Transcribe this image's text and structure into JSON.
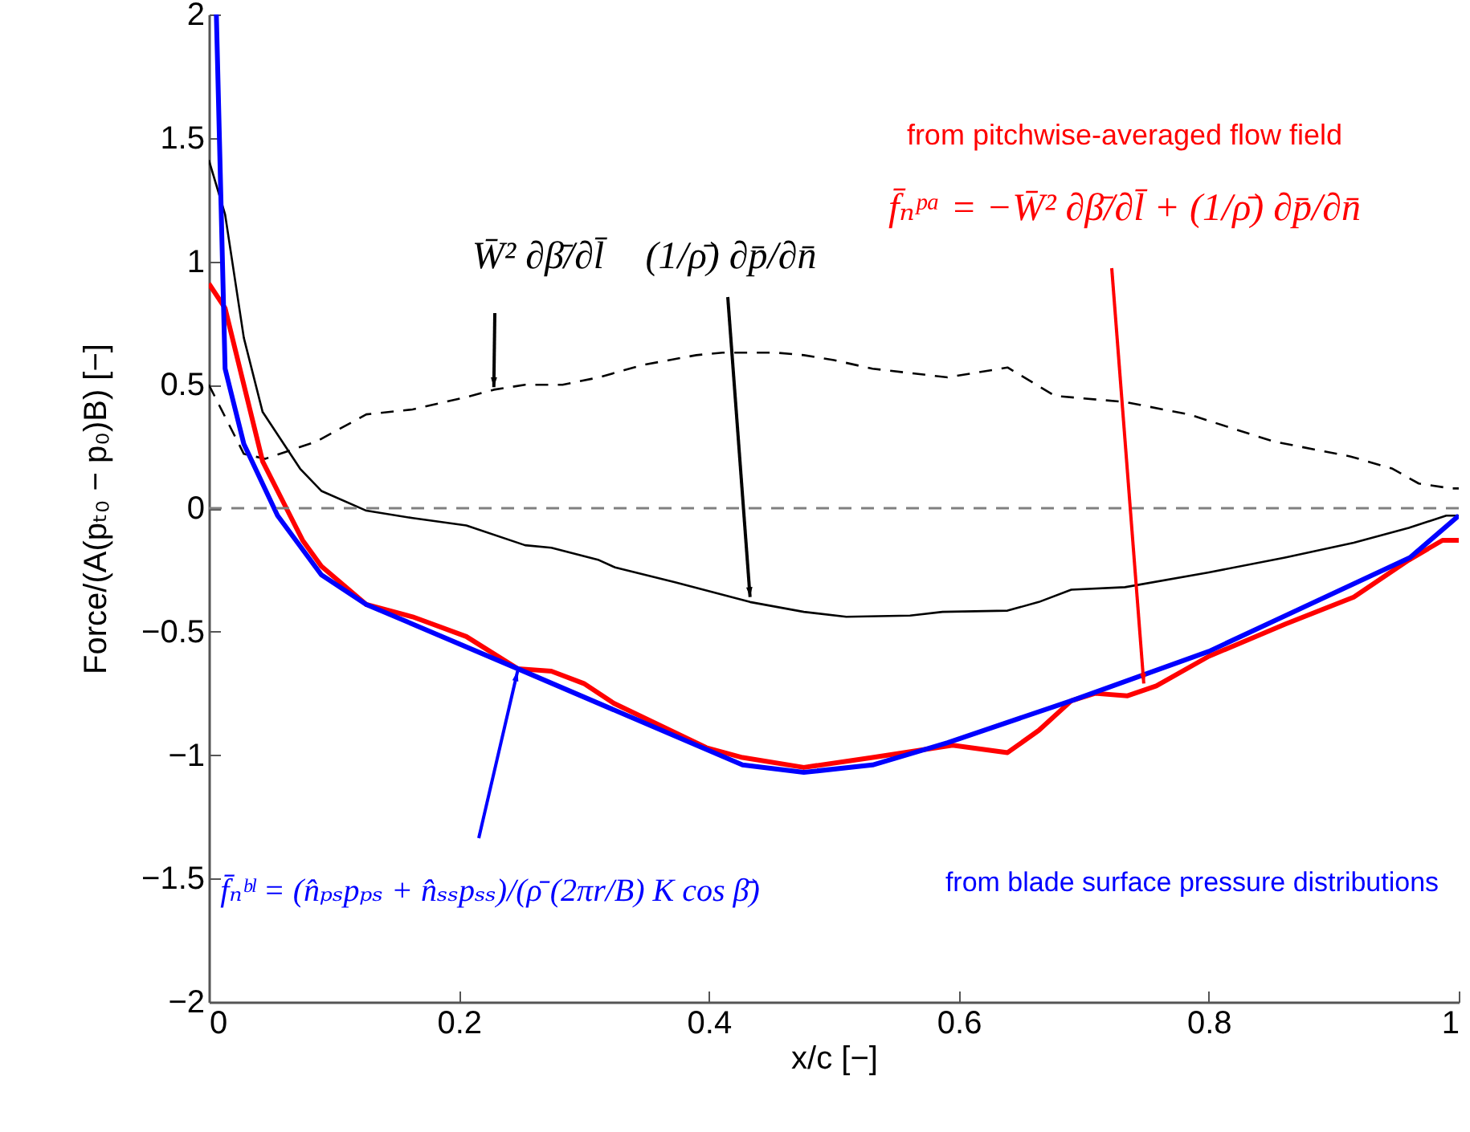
{
  "chart_data": {
    "type": "line",
    "xlabel": "x/c [−]",
    "ylabel": "Force/(A(pₜ₀ − p₀)B) [−]",
    "xlim": [
      0,
      1
    ],
    "xticks": [
      0,
      0.2,
      0.4,
      0.6,
      0.8,
      1
    ],
    "ylim": [
      -2,
      2
    ],
    "yticks": [
      -2,
      -1.5,
      -1,
      -0.5,
      0,
      0.5,
      1,
      1.5,
      2
    ],
    "grid": false,
    "marker": "none",
    "series": [
      {
        "color": "#000000",
        "line_style": "dashed",
        "x": [
          0,
          0.028,
          0.045,
          0.086,
          0.126,
          0.163,
          0.206,
          0.228,
          0.253,
          0.283,
          0.312,
          0.347,
          0.39,
          0.411,
          0.454,
          0.476,
          0.5,
          0.531,
          0.591,
          0.639,
          0.677,
          0.733,
          0.784,
          0.852,
          0.913,
          0.947,
          0.968,
          0.994,
          1
        ],
        "values": [
          0.5,
          0.22,
          0.2,
          0.27,
          0.38,
          0.4,
          0.45,
          0.48,
          0.5,
          0.5,
          0.53,
          0.58,
          0.62,
          0.63,
          0.63,
          0.62,
          0.6,
          0.565,
          0.53,
          0.57,
          0.455,
          0.43,
          0.38,
          0.27,
          0.21,
          0.16,
          0.1,
          0.08,
          0.08
        ]
      },
      {
        "color": "#000000",
        "line_style": "solid",
        "x": [
          0,
          0.013,
          0.028,
          0.043,
          0.073,
          0.09,
          0.126,
          0.163,
          0.206,
          0.253,
          0.274,
          0.312,
          0.325,
          0.373,
          0.433,
          0.476,
          0.51,
          0.561,
          0.587,
          0.639,
          0.664,
          0.69,
          0.733,
          0.8,
          0.861,
          0.916,
          0.96,
          0.99,
          1
        ],
        "values": [
          1.41,
          1.19,
          0.69,
          0.39,
          0.16,
          0.07,
          -0.01,
          -0.04,
          -0.07,
          -0.15,
          -0.16,
          -0.21,
          -0.24,
          -0.3,
          -0.38,
          -0.42,
          -0.44,
          -0.435,
          -0.42,
          -0.415,
          -0.38,
          -0.33,
          -0.32,
          -0.26,
          -0.2,
          -0.14,
          -0.08,
          -0.03,
          -0.03
        ]
      },
      {
        "color": "#ff0000",
        "line_style": "solid",
        "x": [
          0,
          0.013,
          0.043,
          0.062,
          0.075,
          0.09,
          0.126,
          0.163,
          0.206,
          0.247,
          0.274,
          0.3,
          0.324,
          0.398,
          0.427,
          0.476,
          0.531,
          0.595,
          0.639,
          0.664,
          0.69,
          0.709,
          0.735,
          0.758,
          0.8,
          0.861,
          0.916,
          0.96,
          0.987,
          1
        ],
        "values": [
          0.91,
          0.81,
          0.19,
          0,
          -0.13,
          -0.235,
          -0.39,
          -0.44,
          -0.52,
          -0.65,
          -0.66,
          -0.71,
          -0.79,
          -0.97,
          -1.01,
          -1.05,
          -1.01,
          -0.96,
          -0.99,
          -0.9,
          -0.78,
          -0.75,
          -0.76,
          -0.72,
          -0.6,
          -0.47,
          -0.36,
          -0.21,
          -0.13,
          -0.13
        ]
      },
      {
        "color": "#0000ff",
        "line_style": "solid",
        "x": [
          0.006,
          0.013,
          0.028,
          0.055,
          0.09,
          0.126,
          0.247,
          0.427,
          0.476,
          0.531,
          0.591,
          0.69,
          0.8,
          0.961,
          1
        ],
        "values": [
          2,
          0.565,
          0.26,
          -0.03,
          -0.27,
          -0.39,
          -0.65,
          -1.04,
          -1.07,
          -1.04,
          -0.95,
          -0.78,
          -0.58,
          -0.2,
          -0.03
        ]
      }
    ],
    "ref_lines": [
      {
        "axis": "y",
        "value": 0,
        "color": "#808080",
        "line_style": "dashed"
      }
    ],
    "annotations": [
      {
        "text": "W̄² ∂β̄/∂l̄",
        "x": 0.228,
        "y": 0.49
      },
      {
        "text": "(1/ρ̄) ∂p̄/∂n̄",
        "x": 0.433,
        "y": -0.36
      },
      "from pitchwise-averaged flow field",
      {
        "text": "f̄ₙᵖᵃ = −W̄² ∂β̄/∂l̄ + (1/ρ̄) ∂p̄/∂n̄",
        "x": 0.748,
        "y": -0.71
      },
      {
        "text": "f̄ₙᵇˡ = (n̂ₚₛpₚₛ + n̂ₛₛpₛₛ)/(ρ̄ (2πr/B) K cos β̄)",
        "x": 0.247,
        "y": -0.66
      },
      "from blade surface pressure distributions"
    ]
  }
}
